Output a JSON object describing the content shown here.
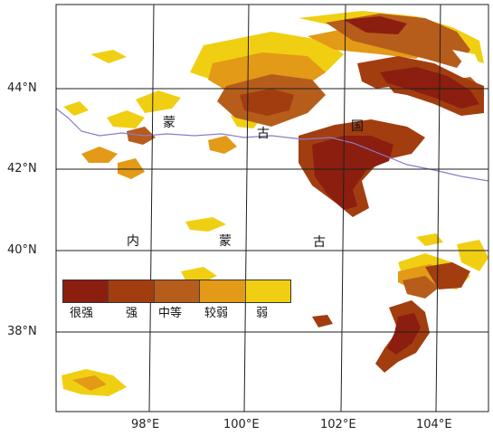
{
  "map": {
    "latitude_labels": [
      "44°N",
      "42°N",
      "40°N",
      "38°N"
    ],
    "longitude_labels": [
      "98°E",
      "100°E",
      "102°E",
      "104°E"
    ],
    "place_labels": {
      "mongolia": [
        "蒙",
        "古",
        "国"
      ],
      "inner_mongolia": [
        "内",
        "蒙",
        "古"
      ]
    },
    "colors": {
      "very_strong": "#8b1e0f",
      "strong": "#a23d10",
      "moderate": "#b65d1c",
      "weaker": "#e39a17",
      "weak": "#f0cf12",
      "border": "#8a7cc8",
      "grid": "#1f1f1f"
    }
  },
  "legend": {
    "items": [
      {
        "label": "很强",
        "color": "#8b1e0f"
      },
      {
        "label": "强",
        "color": "#a23d10"
      },
      {
        "label": "中等",
        "color": "#b65d1c"
      },
      {
        "label": "较弱",
        "color": "#e39a17"
      },
      {
        "label": "弱",
        "color": "#f0cf12"
      }
    ]
  }
}
